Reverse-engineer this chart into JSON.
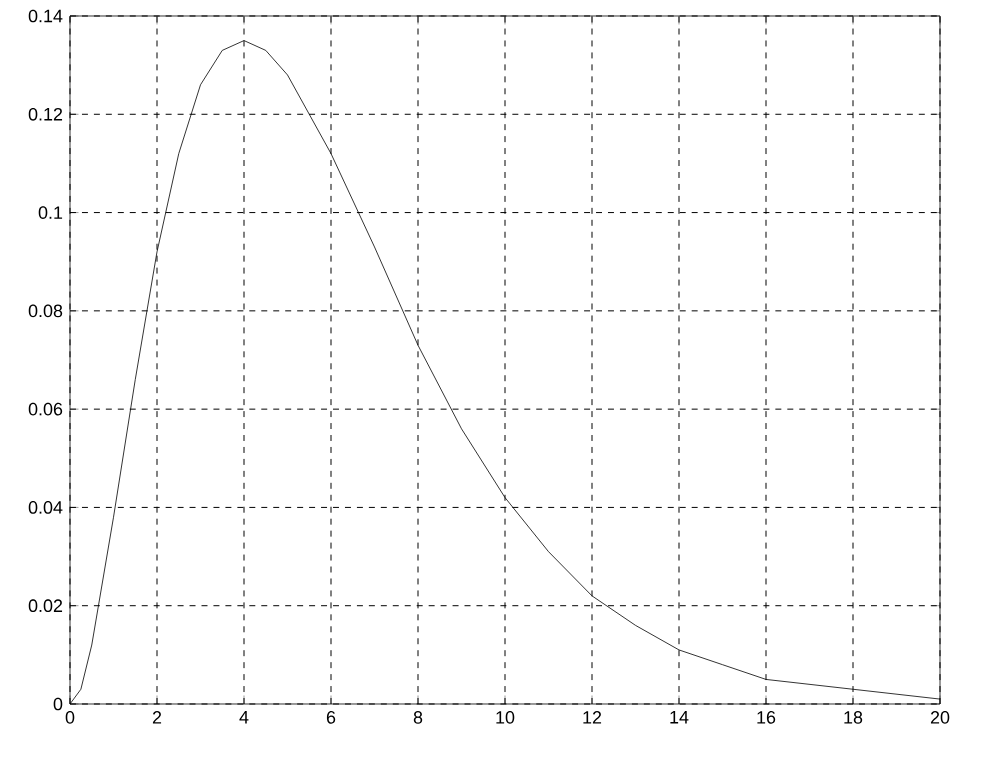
{
  "chart_data": {
    "type": "line",
    "x": [
      0,
      0.25,
      0.5,
      1,
      1.5,
      2,
      2.5,
      3,
      3.5,
      4,
      4.5,
      5,
      6,
      7,
      8,
      9,
      10,
      11,
      12,
      13,
      14,
      15,
      16,
      17,
      18,
      19,
      20
    ],
    "values": [
      0,
      0.003,
      0.012,
      0.038,
      0.066,
      0.092,
      0.112,
      0.126,
      0.133,
      0.135,
      0.133,
      0.128,
      0.112,
      0.093,
      0.073,
      0.056,
      0.042,
      0.031,
      0.022,
      0.016,
      0.011,
      0.008,
      0.005,
      0.004,
      0.003,
      0.002,
      0.001
    ],
    "color": "#000000",
    "xlim": [
      0,
      20
    ],
    "ylim": [
      0,
      0.14
    ],
    "xticks": [
      0,
      2,
      4,
      6,
      8,
      10,
      12,
      14,
      16,
      18,
      20
    ],
    "yticks": [
      0,
      0.02,
      0.04,
      0.06,
      0.08,
      0.1,
      0.12,
      0.14
    ],
    "grid": true,
    "line_style": "solid",
    "marker": "none"
  }
}
